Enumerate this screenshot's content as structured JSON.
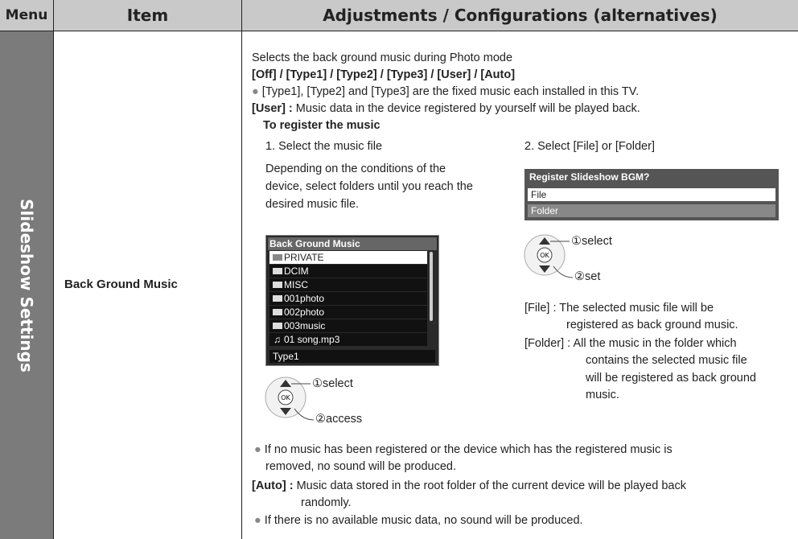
{
  "table": {
    "header": [
      "Menu",
      "Item",
      "Adjustments / Configurations (alternatives)"
    ],
    "row": {
      "menu": "Slideshow Settings",
      "item": "Back Ground Music",
      "description": "Selects the back ground music during Photo mode",
      "options": "[Off] / [Type1] / [Type2] / [Type3] / [User] / [Auto]",
      "fixed_note": "[Type1], [Type2] and [Type3] are the fixed music each installed in this TV.",
      "user": {
        "label": "[User] :",
        "text": "Music data in the device registered by yourself will be played back."
      },
      "register": {
        "heading": "To register the music",
        "step1": {
          "title": "1. Select the music file",
          "text": [
            "Depending on the conditions of the",
            "device, select folders until you reach the",
            "desired music file."
          ],
          "screen": {
            "title": "Back Ground Music",
            "items": [
              "PRIVATE",
              "DCIM",
              "MISC",
              "001photo",
              "002photo",
              "003music",
              "01 song.mp3"
            ],
            "footer": "Type1"
          },
          "remote": [
            "①select",
            "②access"
          ]
        },
        "step2": {
          "title": "2. Select [File] or [Folder]",
          "screen": {
            "title": "Register Slideshow BGM?",
            "items": [
              "File",
              "Folder"
            ]
          },
          "remote": [
            "①select",
            "②set"
          ],
          "file": {
            "label": "[File] :",
            "lines": [
              "The selected music file will be",
              "registered as back ground music."
            ]
          },
          "folder": {
            "label": "[Folder] :",
            "lines": [
              "All the music in the folder which",
              "contains the selected music file",
              "will be registered as back ground",
              "music."
            ]
          }
        }
      },
      "no_music_note": [
        "If no music has been registered or the device which has the registered music is",
        "removed, no sound will be produced."
      ],
      "auto": {
        "label": "[Auto] :",
        "lines": [
          "Music data stored in the root folder of the current device will be played back",
          "randomly."
        ]
      },
      "no_data_note": "If there is no available music data, no sound will be produced."
    }
  }
}
